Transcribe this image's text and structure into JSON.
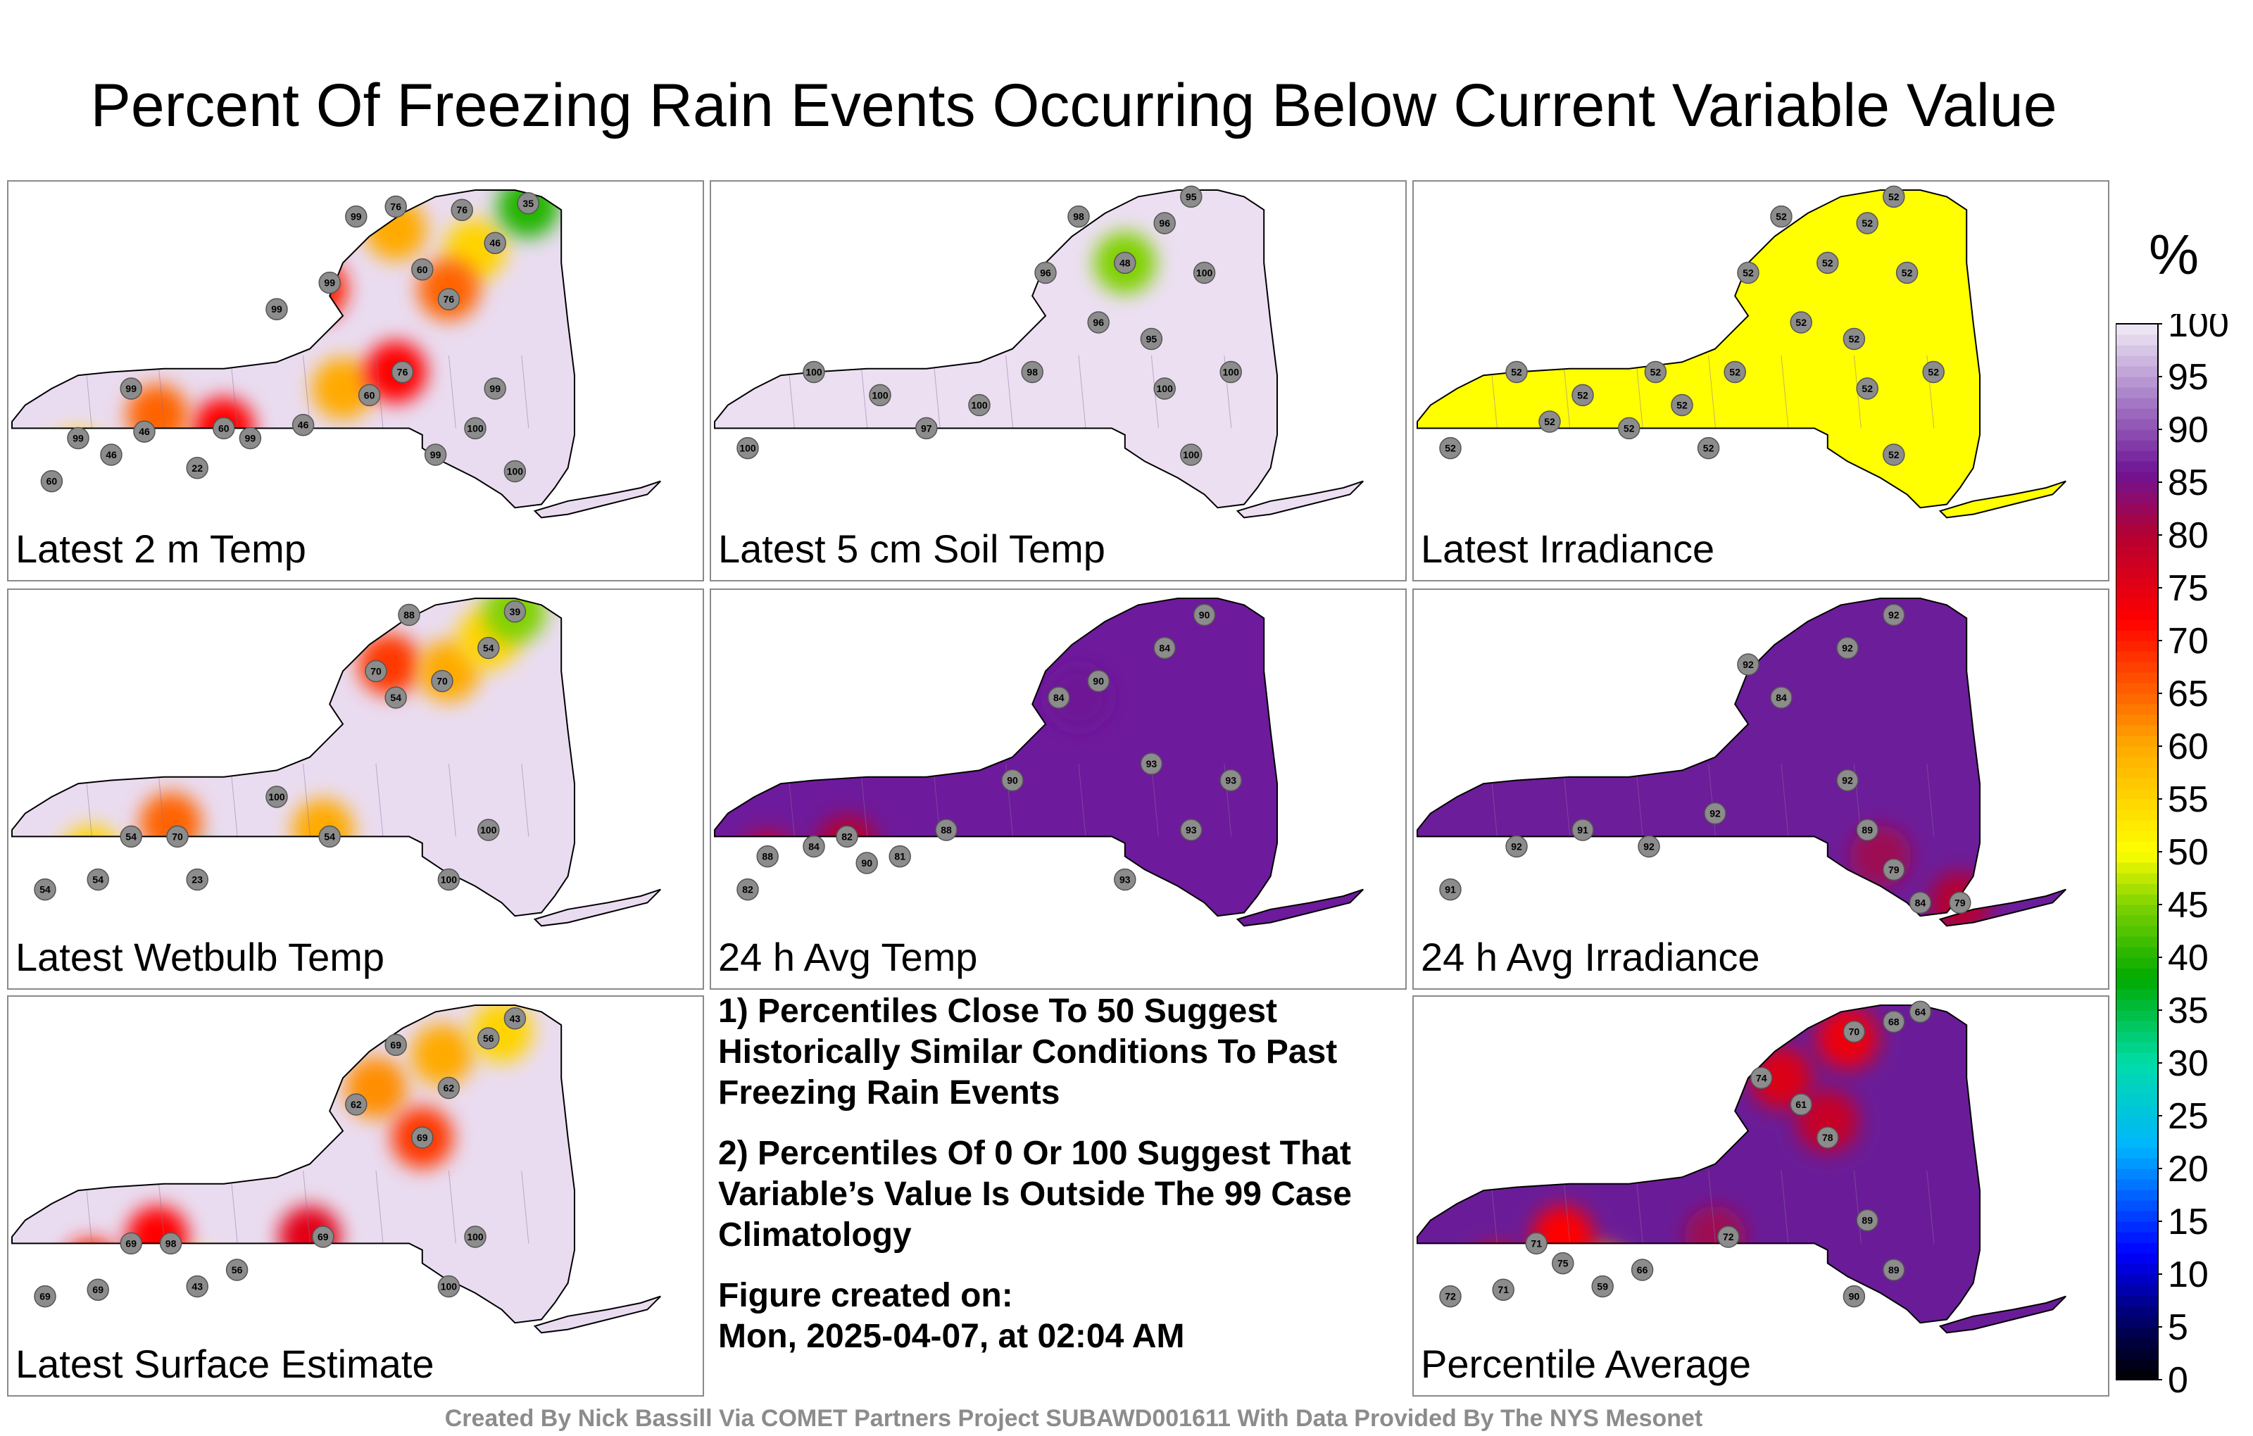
{
  "title": "Percent Of Freezing Rain Events Occurring Below Current Variable Value",
  "panels": [
    {
      "label": "Latest 2 m Temp",
      "fill": "#eadcf0",
      "hotspots": [
        {
          "u": 0.1,
          "v": 0.82,
          "val": 0.55
        },
        {
          "u": 0.27,
          "v": 0.85,
          "val": 0.3
        },
        {
          "u": 0.32,
          "v": 0.72,
          "val": 0.72
        },
        {
          "u": 0.22,
          "v": 0.68,
          "val": 0.65
        },
        {
          "u": 0.5,
          "v": 0.6,
          "val": 0.6
        },
        {
          "u": 0.58,
          "v": 0.55,
          "val": 0.72
        },
        {
          "u": 0.58,
          "v": 0.12,
          "val": 0.6
        },
        {
          "u": 0.7,
          "v": 0.18,
          "val": 0.55
        },
        {
          "u": 0.78,
          "v": 0.05,
          "val": 0.4
        },
        {
          "u": 0.66,
          "v": 0.3,
          "val": 0.65
        },
        {
          "u": 0.46,
          "v": 0.3,
          "val": 0.7
        }
      ],
      "stations": [
        {
          "u": 0.06,
          "v": 0.88,
          "t": "60"
        },
        {
          "u": 0.1,
          "v": 0.75,
          "t": "99"
        },
        {
          "u": 0.15,
          "v": 0.8,
          "t": "46"
        },
        {
          "u": 0.2,
          "v": 0.73,
          "t": "46"
        },
        {
          "u": 0.28,
          "v": 0.84,
          "t": "22"
        },
        {
          "u": 0.32,
          "v": 0.72,
          "t": "60"
        },
        {
          "u": 0.36,
          "v": 0.75,
          "t": "99"
        },
        {
          "u": 0.44,
          "v": 0.71,
          "t": "46"
        },
        {
          "u": 0.54,
          "v": 0.62,
          "t": "60"
        },
        {
          "u": 0.59,
          "v": 0.55,
          "t": "76"
        },
        {
          "u": 0.52,
          "v": 0.08,
          "t": "99"
        },
        {
          "u": 0.58,
          "v": 0.05,
          "t": "76"
        },
        {
          "u": 0.68,
          "v": 0.06,
          "t": "76"
        },
        {
          "u": 0.73,
          "v": 0.16,
          "t": "46"
        },
        {
          "u": 0.78,
          "v": 0.04,
          "t": "35"
        },
        {
          "u": 0.62,
          "v": 0.24,
          "t": "60"
        },
        {
          "u": 0.66,
          "v": 0.33,
          "t": "76"
        },
        {
          "u": 0.48,
          "v": 0.28,
          "t": "99"
        },
        {
          "u": 0.4,
          "v": 0.36,
          "t": "99"
        },
        {
          "u": 0.18,
          "v": 0.6,
          "t": "99"
        },
        {
          "u": 0.7,
          "v": 0.72,
          "t": "100"
        },
        {
          "u": 0.76,
          "v": 0.85,
          "t": "100"
        },
        {
          "u": 0.73,
          "v": 0.6,
          "t": "99"
        },
        {
          "u": 0.64,
          "v": 0.8,
          "t": "99"
        }
      ]
    },
    {
      "label": "Latest 5 cm Soil Temp",
      "fill": "#ecdff2",
      "hotspots": [
        {
          "u": 0.62,
          "v": 0.22,
          "val": 0.45
        }
      ],
      "stations": [
        {
          "u": 0.05,
          "v": 0.78,
          "t": "100"
        },
        {
          "u": 0.15,
          "v": 0.55,
          "t": "100"
        },
        {
          "u": 0.25,
          "v": 0.62,
          "t": "100"
        },
        {
          "u": 0.32,
          "v": 0.72,
          "t": "97"
        },
        {
          "u": 0.4,
          "v": 0.65,
          "t": "100"
        },
        {
          "u": 0.48,
          "v": 0.55,
          "t": "98"
        },
        {
          "u": 0.5,
          "v": 0.25,
          "t": "96"
        },
        {
          "u": 0.55,
          "v": 0.08,
          "t": "98"
        },
        {
          "u": 0.62,
          "v": 0.22,
          "t": "48"
        },
        {
          "u": 0.68,
          "v": 0.1,
          "t": "96"
        },
        {
          "u": 0.72,
          "v": 0.02,
          "t": "95"
        },
        {
          "u": 0.74,
          "v": 0.25,
          "t": "100"
        },
        {
          "u": 0.66,
          "v": 0.45,
          "t": "95"
        },
        {
          "u": 0.58,
          "v": 0.4,
          "t": "96"
        },
        {
          "u": 0.68,
          "v": 0.6,
          "t": "100"
        },
        {
          "u": 0.72,
          "v": 0.8,
          "t": "100"
        },
        {
          "u": 0.78,
          "v": 0.55,
          "t": "100"
        }
      ]
    },
    {
      "label": "Latest Irradiance",
      "fill": "#ffff00",
      "hotspots": [],
      "stations": [
        {
          "u": 0.05,
          "v": 0.78,
          "t": "52"
        },
        {
          "u": 0.15,
          "v": 0.55,
          "t": "52"
        },
        {
          "u": 0.25,
          "v": 0.62,
          "t": "52"
        },
        {
          "u": 0.32,
          "v": 0.72,
          "t": "52"
        },
        {
          "u": 0.4,
          "v": 0.65,
          "t": "52"
        },
        {
          "u": 0.48,
          "v": 0.55,
          "t": "52"
        },
        {
          "u": 0.5,
          "v": 0.25,
          "t": "52"
        },
        {
          "u": 0.55,
          "v": 0.08,
          "t": "52"
        },
        {
          "u": 0.62,
          "v": 0.22,
          "t": "52"
        },
        {
          "u": 0.68,
          "v": 0.1,
          "t": "52"
        },
        {
          "u": 0.72,
          "v": 0.02,
          "t": "52"
        },
        {
          "u": 0.74,
          "v": 0.25,
          "t": "52"
        },
        {
          "u": 0.66,
          "v": 0.45,
          "t": "52"
        },
        {
          "u": 0.58,
          "v": 0.4,
          "t": "52"
        },
        {
          "u": 0.68,
          "v": 0.6,
          "t": "52"
        },
        {
          "u": 0.72,
          "v": 0.8,
          "t": "52"
        },
        {
          "u": 0.78,
          "v": 0.55,
          "t": "52"
        },
        {
          "u": 0.2,
          "v": 0.7,
          "t": "52"
        },
        {
          "u": 0.36,
          "v": 0.55,
          "t": "52"
        },
        {
          "u": 0.44,
          "v": 0.78,
          "t": "52"
        }
      ]
    },
    {
      "label": "Latest Wetbulb Temp",
      "fill": "#eadcf0",
      "hotspots": [
        {
          "u": 0.12,
          "v": 0.78,
          "val": 0.55
        },
        {
          "u": 0.28,
          "v": 0.84,
          "val": 0.3
        },
        {
          "u": 0.24,
          "v": 0.68,
          "val": 0.65
        },
        {
          "u": 0.47,
          "v": 0.7,
          "val": 0.6
        },
        {
          "u": 0.57,
          "v": 0.2,
          "val": 0.68
        },
        {
          "u": 0.66,
          "v": 0.22,
          "val": 0.6
        },
        {
          "u": 0.72,
          "v": 0.12,
          "val": 0.55
        },
        {
          "u": 0.76,
          "v": 0.04,
          "val": 0.45
        }
      ],
      "stations": [
        {
          "u": 0.05,
          "v": 0.88,
          "t": "54"
        },
        {
          "u": 0.13,
          "v": 0.85,
          "t": "54"
        },
        {
          "u": 0.18,
          "v": 0.72,
          "t": "54"
        },
        {
          "u": 0.25,
          "v": 0.72,
          "t": "70"
        },
        {
          "u": 0.28,
          "v": 0.85,
          "t": "23"
        },
        {
          "u": 0.48,
          "v": 0.72,
          "t": "54"
        },
        {
          "u": 0.55,
          "v": 0.22,
          "t": "70"
        },
        {
          "u": 0.58,
          "v": 0.3,
          "t": "54"
        },
        {
          "u": 0.65,
          "v": 0.25,
          "t": "70"
        },
        {
          "u": 0.72,
          "v": 0.15,
          "t": "54"
        },
        {
          "u": 0.76,
          "v": 0.04,
          "t": "39"
        },
        {
          "u": 0.6,
          "v": 0.05,
          "t": "88"
        },
        {
          "u": 0.4,
          "v": 0.6,
          "t": "100"
        },
        {
          "u": 0.72,
          "v": 0.7,
          "t": "100"
        },
        {
          "u": 0.66,
          "v": 0.85,
          "t": "100"
        }
      ]
    },
    {
      "label": "24 h Avg Temp",
      "fill": "#6e1a9c",
      "hotspots": [
        {
          "u": 0.08,
          "v": 0.8,
          "val": 0.78
        },
        {
          "u": 0.2,
          "v": 0.75,
          "val": 0.8
        },
        {
          "u": 0.55,
          "v": 0.3,
          "val": 0.86
        }
      ],
      "stations": [
        {
          "u": 0.05,
          "v": 0.88,
          "t": "82"
        },
        {
          "u": 0.08,
          "v": 0.78,
          "t": "88"
        },
        {
          "u": 0.15,
          "v": 0.75,
          "t": "84"
        },
        {
          "u": 0.2,
          "v": 0.72,
          "t": "82"
        },
        {
          "u": 0.23,
          "v": 0.8,
          "t": "90"
        },
        {
          "u": 0.28,
          "v": 0.78,
          "t": "81"
        },
        {
          "u": 0.35,
          "v": 0.7,
          "t": "88"
        },
        {
          "u": 0.45,
          "v": 0.55,
          "t": "90"
        },
        {
          "u": 0.52,
          "v": 0.3,
          "t": "84"
        },
        {
          "u": 0.58,
          "v": 0.25,
          "t": "90"
        },
        {
          "u": 0.68,
          "v": 0.15,
          "t": "84"
        },
        {
          "u": 0.74,
          "v": 0.05,
          "t": "90"
        },
        {
          "u": 0.66,
          "v": 0.5,
          "t": "93"
        },
        {
          "u": 0.72,
          "v": 0.7,
          "t": "93"
        },
        {
          "u": 0.62,
          "v": 0.85,
          "t": "93"
        },
        {
          "u": 0.78,
          "v": 0.55,
          "t": "93"
        }
      ]
    },
    {
      "label": "24 h Avg Irradiance",
      "fill": "#6c1d9a",
      "hotspots": [
        {
          "u": 0.7,
          "v": 0.78,
          "val": 0.82
        },
        {
          "u": 0.82,
          "v": 0.92,
          "val": 0.8
        }
      ],
      "stations": [
        {
          "u": 0.05,
          "v": 0.88,
          "t": "91"
        },
        {
          "u": 0.15,
          "v": 0.75,
          "t": "92"
        },
        {
          "u": 0.25,
          "v": 0.7,
          "t": "91"
        },
        {
          "u": 0.35,
          "v": 0.75,
          "t": "92"
        },
        {
          "u": 0.45,
          "v": 0.65,
          "t": "92"
        },
        {
          "u": 0.5,
          "v": 0.2,
          "t": "92"
        },
        {
          "u": 0.55,
          "v": 0.3,
          "t": "84"
        },
        {
          "u": 0.65,
          "v": 0.15,
          "t": "92"
        },
        {
          "u": 0.72,
          "v": 0.05,
          "t": "92"
        },
        {
          "u": 0.65,
          "v": 0.55,
          "t": "92"
        },
        {
          "u": 0.68,
          "v": 0.7,
          "t": "89"
        },
        {
          "u": 0.72,
          "v": 0.82,
          "t": "79"
        },
        {
          "u": 0.82,
          "v": 0.92,
          "t": "79"
        },
        {
          "u": 0.76,
          "v": 0.92,
          "t": "84"
        }
      ]
    },
    {
      "label": "Latest Surface Estimate",
      "fill": "#eadcf0",
      "hotspots": [
        {
          "u": 0.12,
          "v": 0.8,
          "val": 0.7
        },
        {
          "u": 0.28,
          "v": 0.84,
          "val": 0.5
        },
        {
          "u": 0.22,
          "v": 0.7,
          "val": 0.72
        },
        {
          "u": 0.45,
          "v": 0.7,
          "val": 0.75
        },
        {
          "u": 0.55,
          "v": 0.25,
          "val": 0.62
        },
        {
          "u": 0.65,
          "v": 0.15,
          "val": 0.6
        },
        {
          "u": 0.74,
          "v": 0.08,
          "val": 0.55
        },
        {
          "u": 0.62,
          "v": 0.4,
          "val": 0.68
        }
      ],
      "stations": [
        {
          "u": 0.05,
          "v": 0.88,
          "t": "69"
        },
        {
          "u": 0.13,
          "v": 0.86,
          "t": "69"
        },
        {
          "u": 0.18,
          "v": 0.72,
          "t": "69"
        },
        {
          "u": 0.28,
          "v": 0.85,
          "t": "43"
        },
        {
          "u": 0.24,
          "v": 0.72,
          "t": "98"
        },
        {
          "u": 0.34,
          "v": 0.8,
          "t": "56"
        },
        {
          "u": 0.47,
          "v": 0.7,
          "t": "69"
        },
        {
          "u": 0.52,
          "v": 0.3,
          "t": "62"
        },
        {
          "u": 0.58,
          "v": 0.12,
          "t": "69"
        },
        {
          "u": 0.66,
          "v": 0.25,
          "t": "62"
        },
        {
          "u": 0.72,
          "v": 0.1,
          "t": "56"
        },
        {
          "u": 0.76,
          "v": 0.04,
          "t": "43"
        },
        {
          "u": 0.62,
          "v": 0.4,
          "t": "69"
        },
        {
          "u": 0.7,
          "v": 0.7,
          "t": "100"
        },
        {
          "u": 0.66,
          "v": 0.85,
          "t": "100"
        }
      ]
    },
    {
      "label": "Percentile Average",
      "fill": "#6a1c98",
      "hotspots": [
        {
          "u": 0.12,
          "v": 0.82,
          "val": 0.74
        },
        {
          "u": 0.28,
          "v": 0.82,
          "val": 0.62
        },
        {
          "u": 0.22,
          "v": 0.7,
          "val": 0.72
        },
        {
          "u": 0.55,
          "v": 0.22,
          "val": 0.76
        },
        {
          "u": 0.65,
          "v": 0.1,
          "val": 0.74
        },
        {
          "u": 0.62,
          "v": 0.35,
          "val": 0.78
        },
        {
          "u": 0.45,
          "v": 0.7,
          "val": 0.82
        }
      ],
      "stations": [
        {
          "u": 0.05,
          "v": 0.88,
          "t": "72"
        },
        {
          "u": 0.13,
          "v": 0.86,
          "t": "71"
        },
        {
          "u": 0.18,
          "v": 0.72,
          "t": "71"
        },
        {
          "u": 0.22,
          "v": 0.78,
          "t": "75"
        },
        {
          "u": 0.28,
          "v": 0.85,
          "t": "59"
        },
        {
          "u": 0.34,
          "v": 0.8,
          "t": "66"
        },
        {
          "u": 0.47,
          "v": 0.7,
          "t": "72"
        },
        {
          "u": 0.52,
          "v": 0.22,
          "t": "74"
        },
        {
          "u": 0.58,
          "v": 0.3,
          "t": "61"
        },
        {
          "u": 0.66,
          "v": 0.08,
          "t": "70"
        },
        {
          "u": 0.72,
          "v": 0.05,
          "t": "68"
        },
        {
          "u": 0.76,
          "v": 0.02,
          "t": "64"
        },
        {
          "u": 0.62,
          "v": 0.4,
          "t": "78"
        },
        {
          "u": 0.68,
          "v": 0.65,
          "t": "89"
        },
        {
          "u": 0.72,
          "v": 0.8,
          "t": "89"
        },
        {
          "u": 0.66,
          "v": 0.88,
          "t": "90"
        }
      ]
    }
  ],
  "notes": {
    "note1": "1) Percentiles Close To 50 Suggest Historically Similar Conditions To Past Freezing Rain Events",
    "note2": "2) Percentiles Of 0 Or 100 Suggest That Variable’s Value Is Outside The 99 Case Climatology",
    "created_label": "Figure created on:",
    "created_value": "Mon, 2025-04-07, at 02:04 AM"
  },
  "credit": "Created By Nick Bassill Via COMET Partners Project SUBAWD001611 With Data Provided By The NYS Mesonet",
  "colorbar": {
    "unit": "%",
    "ticks": [
      "0",
      "5",
      "10",
      "15",
      "20",
      "25",
      "30",
      "35",
      "40",
      "45",
      "50",
      "55",
      "60",
      "65",
      "70",
      "75",
      "80",
      "85",
      "90",
      "95",
      "100"
    ]
  }
}
